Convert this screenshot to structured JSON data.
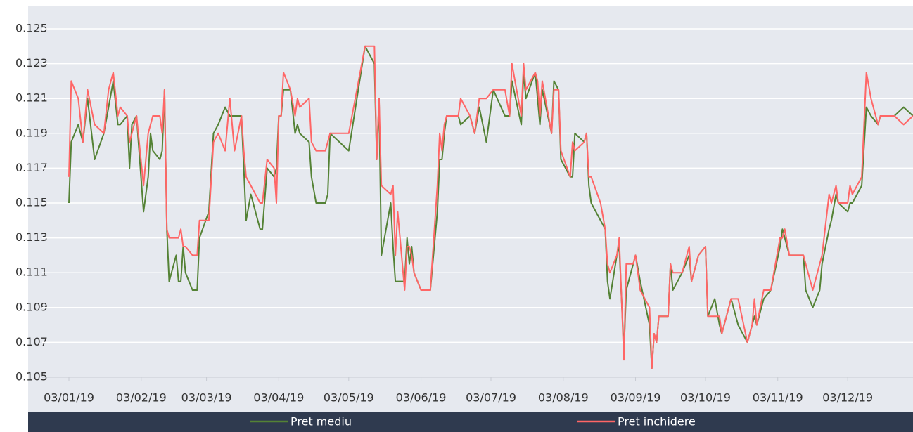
{
  "chart_data": {
    "type": "line",
    "x": [
      "2019-01-03",
      "2019-01-04",
      "2019-01-07",
      "2019-01-09",
      "2019-01-11",
      "2019-01-14",
      "2019-01-18",
      "2019-01-20",
      "2019-01-22",
      "2019-01-24",
      "2019-01-25",
      "2019-01-28",
      "2019-01-29",
      "2019-01-30",
      "2019-02-01",
      "2019-02-04",
      "2019-02-06",
      "2019-02-07",
      "2019-02-08",
      "2019-02-11",
      "2019-02-12",
      "2019-02-13",
      "2019-02-14",
      "2019-02-15",
      "2019-02-18",
      "2019-02-19",
      "2019-02-20",
      "2019-02-21",
      "2019-02-22",
      "2019-02-25",
      "2019-02-27",
      "2019-02-28",
      "2019-03-04",
      "2019-03-06",
      "2019-03-08",
      "2019-03-11",
      "2019-03-13",
      "2019-03-15",
      "2019-03-18",
      "2019-03-19",
      "2019-03-20",
      "2019-03-22",
      "2019-03-26",
      "2019-03-27",
      "2019-03-29",
      "2019-04-01",
      "2019-04-02",
      "2019-04-03",
      "2019-04-04",
      "2019-04-05",
      "2019-04-08",
      "2019-04-10",
      "2019-04-11",
      "2019-04-12",
      "2019-04-16",
      "2019-04-17",
      "2019-04-19",
      "2019-04-23",
      "2019-04-24",
      "2019-04-25",
      "2019-05-03",
      "2019-05-10",
      "2019-05-14",
      "2019-05-15",
      "2019-05-16",
      "2019-05-17",
      "2019-05-21",
      "2019-05-22",
      "2019-05-23",
      "2019-05-24",
      "2019-05-27",
      "2019-05-28",
      "2019-05-29",
      "2019-05-30",
      "2019-05-31",
      "2019-06-03",
      "2019-06-07",
      "2019-06-10",
      "2019-06-11",
      "2019-06-12",
      "2019-06-13",
      "2019-06-14",
      "2019-06-19",
      "2019-06-20",
      "2019-06-24",
      "2019-06-26",
      "2019-06-28",
      "2019-07-01",
      "2019-07-04",
      "2019-07-09",
      "2019-07-11",
      "2019-07-12",
      "2019-07-16",
      "2019-07-17",
      "2019-07-18",
      "2019-07-22",
      "2019-07-23",
      "2019-07-24",
      "2019-07-25",
      "2019-07-29",
      "2019-07-30",
      "2019-08-01",
      "2019-08-02",
      "2019-08-06",
      "2019-08-07",
      "2019-08-08",
      "2019-08-12",
      "2019-08-13",
      "2019-08-14",
      "2019-08-15",
      "2019-08-19",
      "2019-08-21",
      "2019-08-22",
      "2019-08-23",
      "2019-08-26",
      "2019-08-27",
      "2019-08-29",
      "2019-08-30",
      "2019-09-02",
      "2019-09-03",
      "2019-09-05",
      "2019-09-09",
      "2019-09-10",
      "2019-09-11",
      "2019-09-12",
      "2019-09-13",
      "2019-09-17",
      "2019-09-18",
      "2019-09-19",
      "2019-09-23",
      "2019-09-26",
      "2019-09-27",
      "2019-09-30",
      "2019-10-03",
      "2019-10-04",
      "2019-10-07",
      "2019-10-09",
      "2019-10-10",
      "2019-10-14",
      "2019-10-17",
      "2019-10-21",
      "2019-10-23",
      "2019-10-24",
      "2019-10-25",
      "2019-10-28",
      "2019-10-31",
      "2019-11-04",
      "2019-11-05",
      "2019-11-06",
      "2019-11-08",
      "2019-11-14",
      "2019-11-15",
      "2019-11-18",
      "2019-11-21",
      "2019-11-22",
      "2019-11-25",
      "2019-11-26",
      "2019-11-28",
      "2019-11-29",
      "2019-12-03",
      "2019-12-04",
      "2019-12-05",
      "2019-12-09",
      "2019-12-11",
      "2019-12-13",
      "2019-12-16",
      "2019-12-17",
      "2019-12-23",
      "2019-12-27",
      "2019-12-31"
    ],
    "series": [
      {
        "name": "Pret mediu",
        "color": "#548235",
        "values": [
          0.115,
          0.1185,
          0.1195,
          0.1185,
          0.121,
          0.1175,
          0.119,
          0.1205,
          0.122,
          0.1195,
          0.1195,
          0.12,
          0.117,
          0.1195,
          0.12,
          0.1145,
          0.1165,
          0.119,
          0.118,
          0.1175,
          0.118,
          0.1215,
          0.1135,
          0.1105,
          0.112,
          0.1105,
          0.1105,
          0.1125,
          0.111,
          0.11,
          0.11,
          0.113,
          0.1145,
          0.119,
          0.1195,
          0.1205,
          0.12,
          0.12,
          0.12,
          0.117,
          0.114,
          0.1155,
          0.1135,
          0.1135,
          0.117,
          0.1165,
          0.117,
          0.12,
          0.12,
          0.1215,
          0.1215,
          0.119,
          0.1195,
          0.119,
          0.1185,
          0.1165,
          0.115,
          0.115,
          0.1155,
          0.119,
          0.118,
          0.124,
          0.123,
          0.1175,
          0.121,
          0.112,
          0.115,
          0.1125,
          0.1105,
          0.1105,
          0.1105,
          0.113,
          0.1115,
          0.1125,
          0.111,
          0.11,
          0.11,
          0.1145,
          0.1175,
          0.1175,
          0.119,
          0.12,
          0.12,
          0.1195,
          0.12,
          0.119,
          0.1205,
          0.1185,
          0.1215,
          0.12,
          0.12,
          0.122,
          0.1195,
          0.1225,
          0.121,
          0.1225,
          0.121,
          0.1195,
          0.1215,
          0.119,
          0.122,
          0.1215,
          0.1175,
          0.1165,
          0.1165,
          0.119,
          0.1185,
          0.119,
          0.116,
          0.115,
          0.114,
          0.1135,
          0.1105,
          0.1095,
          0.112,
          0.1125,
          0.1065,
          0.11,
          0.1115,
          0.112,
          0.1105,
          0.108,
          0.1055,
          0.1075,
          0.107,
          0.1085,
          0.1085,
          0.1115,
          0.11,
          0.111,
          0.112,
          0.1105,
          0.112,
          0.1125,
          0.1085,
          0.1095,
          0.108,
          0.1075,
          0.1095,
          0.108,
          0.107,
          0.108,
          0.1085,
          0.108,
          0.1095,
          0.11,
          0.1125,
          0.1135,
          0.113,
          0.112,
          0.112,
          0.11,
          0.109,
          0.11,
          0.1115,
          0.1135,
          0.114,
          0.1155,
          0.115,
          0.1145,
          0.115,
          0.115,
          0.116,
          0.1205,
          0.12,
          0.1195,
          0.12,
          0.12,
          0.1205,
          0.12
        ]
      },
      {
        "name": "Pret inchidere",
        "color": "#ff6666",
        "values": [
          0.1165,
          0.122,
          0.121,
          0.1185,
          0.1215,
          0.1195,
          0.119,
          0.1215,
          0.1225,
          0.12,
          0.1205,
          0.12,
          0.1185,
          0.119,
          0.12,
          0.116,
          0.119,
          0.1195,
          0.12,
          0.12,
          0.119,
          0.1215,
          0.1135,
          0.113,
          0.113,
          0.113,
          0.1135,
          0.1125,
          0.1125,
          0.112,
          0.112,
          0.114,
          0.114,
          0.1185,
          0.119,
          0.118,
          0.121,
          0.118,
          0.12,
          0.118,
          0.1165,
          0.116,
          0.115,
          0.115,
          0.1175,
          0.117,
          0.115,
          0.12,
          0.12,
          0.1225,
          0.1215,
          0.12,
          0.121,
          0.1205,
          0.121,
          0.1185,
          0.118,
          0.118,
          0.1185,
          0.119,
          0.119,
          0.124,
          0.124,
          0.1175,
          0.121,
          0.116,
          0.1155,
          0.116,
          0.112,
          0.1145,
          0.11,
          0.1125,
          0.1125,
          0.112,
          0.111,
          0.11,
          0.11,
          0.116,
          0.119,
          0.118,
          0.1195,
          0.12,
          0.12,
          0.121,
          0.12,
          0.119,
          0.121,
          0.121,
          0.1215,
          0.1215,
          0.12,
          0.123,
          0.12,
          0.123,
          0.1215,
          0.1225,
          0.122,
          0.12,
          0.122,
          0.119,
          0.1215,
          0.1215,
          0.118,
          0.1165,
          0.1185,
          0.118,
          0.1185,
          0.119,
          0.1165,
          0.1165,
          0.115,
          0.1135,
          0.1115,
          0.111,
          0.112,
          0.113,
          0.106,
          0.1115,
          0.1115,
          0.112,
          0.11,
          0.109,
          0.1055,
          0.1075,
          0.107,
          0.1085,
          0.1085,
          0.1115,
          0.111,
          0.111,
          0.1125,
          0.1105,
          0.112,
          0.1125,
          0.1085,
          0.1085,
          0.1085,
          0.1075,
          0.1095,
          0.1095,
          0.107,
          0.108,
          0.1095,
          0.108,
          0.11,
          0.11,
          0.113,
          0.113,
          0.1135,
          0.112,
          0.112,
          0.1115,
          0.11,
          0.1115,
          0.112,
          0.1155,
          0.115,
          0.116,
          0.115,
          0.115,
          0.116,
          0.1155,
          0.1165,
          0.1225,
          0.121,
          0.1195,
          0.12,
          0.12,
          0.1195,
          0.12
        ]
      }
    ],
    "xlim": [
      "2019-01-03",
      "2019-12-31"
    ],
    "xticks": [
      {
        "value": "2019-01-03",
        "label": "03/01/19"
      },
      {
        "value": "2019-02-03",
        "label": "03/02/19"
      },
      {
        "value": "2019-03-03",
        "label": "03/03/19"
      },
      {
        "value": "2019-04-03",
        "label": "03/04/19"
      },
      {
        "value": "2019-05-03",
        "label": "03/05/19"
      },
      {
        "value": "2019-06-03",
        "label": "03/06/19"
      },
      {
        "value": "2019-07-03",
        "label": "03/07/19"
      },
      {
        "value": "2019-08-03",
        "label": "03/08/19"
      },
      {
        "value": "2019-09-03",
        "label": "03/09/19"
      },
      {
        "value": "2019-10-03",
        "label": "03/10/19"
      },
      {
        "value": "2019-11-03",
        "label": "03/11/19"
      },
      {
        "value": "2019-12-03",
        "label": "03/12/19"
      }
    ],
    "ylim": [
      0.105,
      0.125
    ],
    "yticks": [
      0.105,
      0.107,
      0.109,
      0.111,
      0.113,
      0.115,
      0.117,
      0.119,
      0.121,
      0.123,
      0.125
    ],
    "grid": true,
    "legend": "bottom"
  }
}
